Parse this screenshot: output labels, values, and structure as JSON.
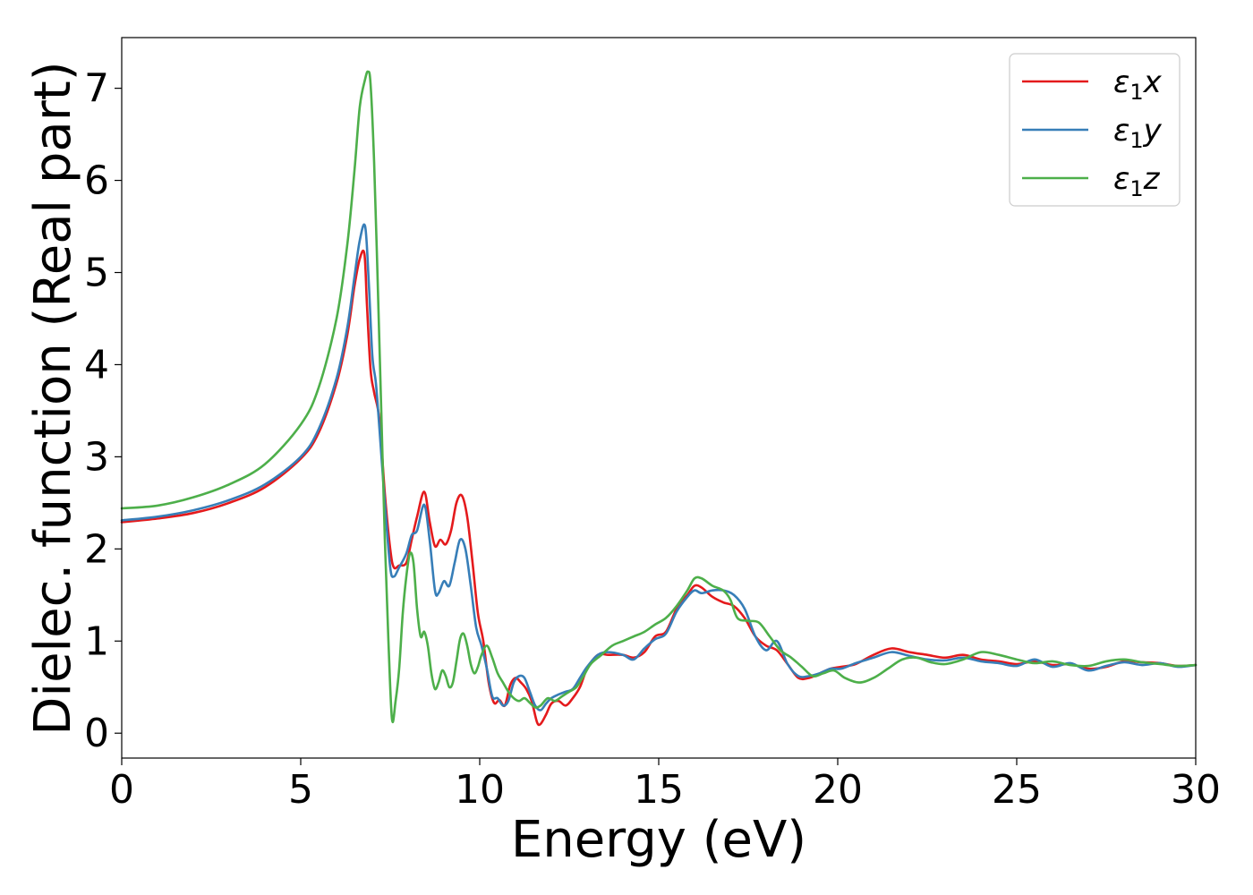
{
  "chart_data": {
    "type": "line",
    "title": "",
    "xlabel": "Energy (eV)",
    "ylabel": "Dielec. function (Real part)",
    "xlim": [
      0,
      30
    ],
    "ylim": [
      -0.27,
      7.55
    ],
    "xticks": [
      0,
      5,
      10,
      15,
      20,
      25,
      30
    ],
    "yticks": [
      0,
      1,
      2,
      3,
      4,
      5,
      6,
      7
    ],
    "grid": false,
    "legend_position": "top-right",
    "series": [
      {
        "name": "ε",
        "subscript": "1",
        "suffix": "x",
        "color": "#e41a1c",
        "x": [
          0,
          1,
          2,
          3,
          4,
          5,
          5.5,
          6,
          6.3,
          6.5,
          6.65,
          6.78,
          6.85,
          6.95,
          7.05,
          7.2,
          7.35,
          7.5,
          7.6,
          7.75,
          7.95,
          8.1,
          8.25,
          8.45,
          8.6,
          8.75,
          8.9,
          9.05,
          9.2,
          9.35,
          9.5,
          9.65,
          9.8,
          9.95,
          10.1,
          10.25,
          10.4,
          10.55,
          10.7,
          10.85,
          11.0,
          11.15,
          11.3,
          11.45,
          11.6,
          11.7,
          11.85,
          12.0,
          12.2,
          12.4,
          12.6,
          12.8,
          13.0,
          13.3,
          13.6,
          14.0,
          14.3,
          14.6,
          14.9,
          15.2,
          15.5,
          15.8,
          16.0,
          16.2,
          16.5,
          16.8,
          17.1,
          17.4,
          17.7,
          18.0,
          18.3,
          18.6,
          18.9,
          19.2,
          19.5,
          19.8,
          20.1,
          20.5,
          21.0,
          21.5,
          22.0,
          22.5,
          23.0,
          23.5,
          24.0,
          24.5,
          25.0,
          25.5,
          26.0,
          26.5,
          27.0,
          27.5,
          28.0,
          28.5,
          29.0,
          29.5,
          30.0
        ],
        "y": [
          2.29,
          2.33,
          2.39,
          2.5,
          2.67,
          2.98,
          3.26,
          3.8,
          4.32,
          4.85,
          5.15,
          5.2,
          4.65,
          3.95,
          3.7,
          3.4,
          2.6,
          2.0,
          1.8,
          1.82,
          1.85,
          2.1,
          2.35,
          2.62,
          2.3,
          2.03,
          2.1,
          2.05,
          2.2,
          2.5,
          2.58,
          2.35,
          1.85,
          1.3,
          1.0,
          0.55,
          0.33,
          0.36,
          0.3,
          0.52,
          0.6,
          0.55,
          0.48,
          0.35,
          0.12,
          0.1,
          0.2,
          0.32,
          0.35,
          0.3,
          0.38,
          0.5,
          0.7,
          0.85,
          0.85,
          0.85,
          0.82,
          0.88,
          1.05,
          1.1,
          1.35,
          1.5,
          1.6,
          1.58,
          1.48,
          1.42,
          1.38,
          1.25,
          1.05,
          0.95,
          0.9,
          0.75,
          0.6,
          0.6,
          0.65,
          0.7,
          0.72,
          0.75,
          0.85,
          0.92,
          0.88,
          0.85,
          0.82,
          0.85,
          0.8,
          0.78,
          0.75,
          0.78,
          0.74,
          0.75,
          0.7,
          0.72,
          0.78,
          0.77,
          0.76,
          0.73,
          0.74
        ]
      },
      {
        "name": "ε",
        "subscript": "1",
        "suffix": "y",
        "color": "#377eb8",
        "x": [
          0,
          1,
          2,
          3,
          4,
          5,
          5.5,
          6,
          6.3,
          6.5,
          6.65,
          6.8,
          6.9,
          7.0,
          7.1,
          7.2,
          7.35,
          7.5,
          7.6,
          7.75,
          7.95,
          8.1,
          8.25,
          8.45,
          8.6,
          8.75,
          8.85,
          9.0,
          9.15,
          9.3,
          9.45,
          9.6,
          9.75,
          9.9,
          10.05,
          10.2,
          10.35,
          10.5,
          10.65,
          10.8,
          10.95,
          11.1,
          11.25,
          11.4,
          11.55,
          11.7,
          11.85,
          12.0,
          12.2,
          12.4,
          12.6,
          12.8,
          13.0,
          13.3,
          13.6,
          14.0,
          14.3,
          14.6,
          14.9,
          15.2,
          15.5,
          15.8,
          16.0,
          16.2,
          16.5,
          16.8,
          17.1,
          17.4,
          17.7,
          18.0,
          18.3,
          18.6,
          18.9,
          19.2,
          19.5,
          19.8,
          20.1,
          20.5,
          21.0,
          21.5,
          22.0,
          22.5,
          23.0,
          23.5,
          24.0,
          24.5,
          25.0,
          25.5,
          26.0,
          26.5,
          27.0,
          27.5,
          28.0,
          28.5,
          29.0,
          29.5,
          30.0
        ],
        "y": [
          2.31,
          2.35,
          2.42,
          2.53,
          2.7,
          3.0,
          3.3,
          3.85,
          4.4,
          4.95,
          5.35,
          5.5,
          4.9,
          4.1,
          3.8,
          3.3,
          2.5,
          1.8,
          1.7,
          1.8,
          1.95,
          2.15,
          2.2,
          2.48,
          2.1,
          1.55,
          1.52,
          1.65,
          1.6,
          1.85,
          2.1,
          2.0,
          1.6,
          1.15,
          0.95,
          0.7,
          0.4,
          0.38,
          0.3,
          0.35,
          0.55,
          0.62,
          0.6,
          0.45,
          0.3,
          0.25,
          0.32,
          0.38,
          0.42,
          0.45,
          0.48,
          0.6,
          0.72,
          0.85,
          0.88,
          0.85,
          0.8,
          0.92,
          1.02,
          1.08,
          1.32,
          1.48,
          1.55,
          1.52,
          1.55,
          1.55,
          1.5,
          1.35,
          1.05,
          0.9,
          1.0,
          0.75,
          0.62,
          0.62,
          0.65,
          0.7,
          0.7,
          0.76,
          0.82,
          0.88,
          0.84,
          0.8,
          0.79,
          0.82,
          0.78,
          0.76,
          0.73,
          0.8,
          0.72,
          0.76,
          0.68,
          0.73,
          0.77,
          0.74,
          0.76,
          0.72,
          0.74
        ]
      },
      {
        "name": "ε",
        "subscript": "1",
        "suffix": "z",
        "color": "#4daf4a",
        "x": [
          0,
          1,
          2,
          3,
          4,
          5,
          5.5,
          6,
          6.3,
          6.5,
          6.65,
          6.8,
          6.88,
          6.95,
          7.05,
          7.15,
          7.25,
          7.35,
          7.45,
          7.55,
          7.65,
          7.75,
          7.85,
          7.95,
          8.05,
          8.15,
          8.25,
          8.35,
          8.45,
          8.55,
          8.65,
          8.75,
          8.85,
          8.95,
          9.05,
          9.15,
          9.25,
          9.35,
          9.45,
          9.55,
          9.65,
          9.75,
          9.85,
          9.95,
          10.05,
          10.2,
          10.35,
          10.5,
          10.65,
          10.8,
          10.95,
          11.1,
          11.25,
          11.4,
          11.55,
          11.7,
          11.9,
          12.1,
          12.3,
          12.5,
          12.7,
          12.9,
          13.1,
          13.4,
          13.7,
          14.0,
          14.3,
          14.6,
          14.9,
          15.2,
          15.5,
          15.8,
          16.0,
          16.2,
          16.5,
          16.8,
          17.0,
          17.2,
          17.5,
          17.8,
          18.1,
          18.4,
          18.7,
          19.0,
          19.3,
          19.6,
          19.9,
          20.2,
          20.6,
          21.0,
          21.4,
          21.8,
          22.2,
          22.6,
          23.0,
          23.5,
          24.0,
          24.5,
          25.0,
          25.5,
          26.0,
          26.5,
          27.0,
          27.5,
          28.0,
          28.5,
          29.0,
          29.5,
          30.0
        ],
        "y": [
          2.44,
          2.47,
          2.56,
          2.7,
          2.92,
          3.35,
          3.75,
          4.5,
          5.3,
          6.1,
          6.8,
          7.1,
          7.18,
          7.05,
          6.2,
          4.9,
          3.5,
          2.1,
          1.0,
          0.15,
          0.35,
          0.7,
          1.3,
          1.7,
          1.95,
          1.85,
          1.35,
          1.05,
          1.1,
          0.95,
          0.65,
          0.48,
          0.55,
          0.68,
          0.62,
          0.5,
          0.55,
          0.78,
          1.02,
          1.08,
          0.95,
          0.75,
          0.65,
          0.72,
          0.85,
          0.95,
          0.82,
          0.65,
          0.55,
          0.45,
          0.38,
          0.35,
          0.38,
          0.33,
          0.28,
          0.3,
          0.38,
          0.35,
          0.4,
          0.45,
          0.5,
          0.62,
          0.75,
          0.85,
          0.95,
          1.0,
          1.05,
          1.1,
          1.18,
          1.25,
          1.38,
          1.55,
          1.68,
          1.68,
          1.6,
          1.55,
          1.45,
          1.25,
          1.22,
          1.2,
          1.05,
          0.9,
          0.82,
          0.72,
          0.62,
          0.65,
          0.68,
          0.6,
          0.55,
          0.6,
          0.7,
          0.8,
          0.82,
          0.77,
          0.75,
          0.8,
          0.88,
          0.85,
          0.8,
          0.76,
          0.78,
          0.74,
          0.73,
          0.78,
          0.8,
          0.77,
          0.75,
          0.73,
          0.74
        ]
      }
    ]
  }
}
